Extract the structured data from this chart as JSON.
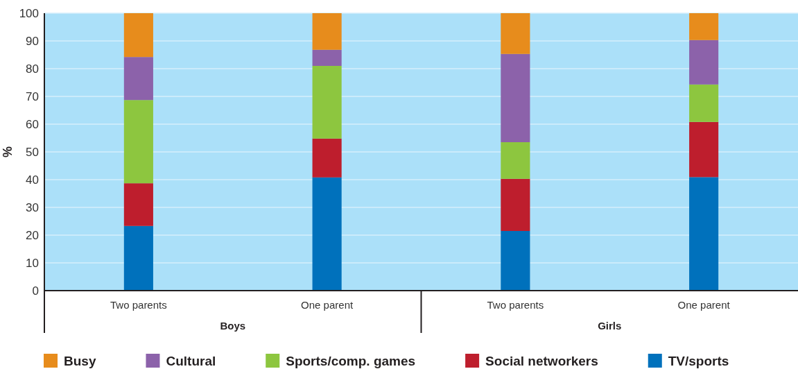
{
  "chart_data": {
    "type": "bar",
    "stacked": true,
    "ylabel": "%",
    "categories": [
      "Two parents",
      "One parent",
      "Two parents",
      "One parent"
    ],
    "annotations": [
      "Boys",
      "Girls"
    ],
    "ylim": [
      0,
      100
    ],
    "yticks": [
      0,
      10,
      20,
      30,
      40,
      50,
      60,
      70,
      80,
      90,
      100
    ],
    "grid": "y",
    "legend": "bottom",
    "series": [
      {
        "name": "TV/sports",
        "color": "#0071bc",
        "values": [
          23.3,
          40.8,
          21.5,
          40.9
        ]
      },
      {
        "name": "Social networkers",
        "color": "#be1e2d",
        "values": [
          15.4,
          14.0,
          18.8,
          19.9
        ]
      },
      {
        "name": "Sports/comp. games",
        "color": "#8dc63f",
        "values": [
          30.0,
          26.2,
          13.2,
          13.5
        ]
      },
      {
        "name": "Cultural",
        "color": "#8c62aa",
        "values": [
          15.5,
          5.8,
          31.8,
          16.0
        ]
      },
      {
        "name": "Busy",
        "color": "#e78c1c",
        "values": [
          15.8,
          13.2,
          14.7,
          9.7
        ]
      }
    ]
  }
}
